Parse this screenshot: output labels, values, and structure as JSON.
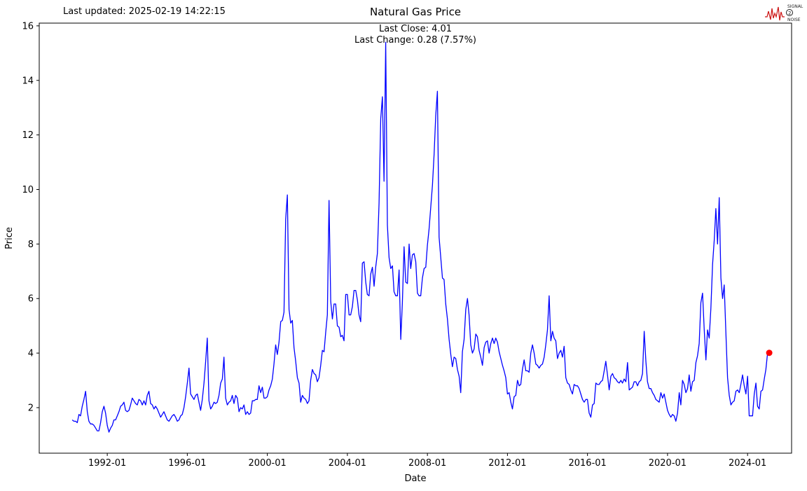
{
  "header": {
    "last_updated": "Last updated: 2025-02-19 14:22:15",
    "title": "Natural Gas Price",
    "subtitle_close": "Last Close: 4.01",
    "subtitle_change": "Last Change: 0.28 (7.57%)"
  },
  "logo": {
    "line1": "SIGNAL",
    "line2": "2",
    "line3": "NOISE",
    "wave_color": "#cc1111",
    "text_color": "#222222"
  },
  "chart_data": {
    "type": "line",
    "title": "Natural Gas Price",
    "xlabel": "Date",
    "ylabel": "Price",
    "line_color": "#0000ff",
    "marker_color": "#ff0000",
    "grid": false,
    "xlim": [
      1988.6,
      2026.2
    ],
    "ylim": [
      0.33,
      16.1
    ],
    "x_ticks": [
      1992,
      1996,
      2000,
      2004,
      2008,
      2012,
      2016,
      2020,
      2024
    ],
    "x_tick_labels": [
      "1992-01",
      "1996-01",
      "2000-01",
      "2004-01",
      "2008-01",
      "2012-01",
      "2016-01",
      "2020-01",
      "2024-01"
    ],
    "y_ticks": [
      2,
      4,
      6,
      8,
      10,
      12,
      14,
      16
    ],
    "y_tick_labels": [
      "2",
      "4",
      "6",
      "8",
      "10",
      "12",
      "14",
      "16"
    ],
    "last_close": 4.01,
    "last_change_abs": 0.28,
    "last_change_pct": 7.57,
    "end_marker": {
      "x": 2025.083,
      "y": 4.01
    },
    "series": [
      {
        "name": "Natural Gas Price",
        "freq": "monthly",
        "start_year": 1990,
        "start_month": 4,
        "values": [
          1.55,
          1.5,
          1.5,
          1.45,
          1.75,
          1.7,
          2.05,
          2.3,
          2.6,
          1.85,
          1.5,
          1.4,
          1.4,
          1.35,
          1.25,
          1.15,
          1.15,
          1.45,
          1.85,
          2.05,
          1.8,
          1.35,
          1.1,
          1.25,
          1.35,
          1.55,
          1.55,
          1.7,
          1.85,
          2.05,
          2.1,
          2.2,
          1.9,
          1.85,
          1.9,
          2.1,
          2.35,
          2.25,
          2.15,
          2.1,
          2.3,
          2.25,
          2.1,
          2.25,
          2.1,
          2.45,
          2.6,
          2.15,
          2.1,
          1.95,
          2.05,
          1.95,
          1.8,
          1.65,
          1.75,
          1.85,
          1.7,
          1.55,
          1.5,
          1.6,
          1.7,
          1.75,
          1.65,
          1.5,
          1.55,
          1.7,
          1.75,
          2.0,
          2.4,
          2.9,
          3.45,
          2.5,
          2.4,
          2.3,
          2.45,
          2.5,
          2.2,
          1.9,
          2.3,
          2.9,
          3.7,
          4.55,
          2.25,
          1.95,
          2.05,
          2.2,
          2.15,
          2.2,
          2.45,
          2.9,
          3.05,
          3.85,
          2.35,
          2.1,
          2.2,
          2.25,
          2.45,
          2.15,
          2.45,
          2.35,
          1.85,
          2.0,
          1.95,
          2.1,
          1.75,
          1.85,
          1.75,
          1.8,
          2.25,
          2.25,
          2.3,
          2.3,
          2.8,
          2.55,
          2.75,
          2.35,
          2.35,
          2.4,
          2.65,
          2.8,
          3.05,
          3.6,
          4.3,
          3.95,
          4.4,
          5.15,
          5.2,
          5.5,
          8.9,
          9.8,
          5.6,
          5.1,
          5.2,
          4.2,
          3.7,
          3.1,
          2.9,
          2.2,
          2.45,
          2.35,
          2.3,
          2.15,
          2.25,
          3.0,
          3.4,
          3.25,
          3.2,
          2.95,
          3.1,
          3.55,
          4.1,
          4.05,
          4.75,
          5.4,
          9.6,
          5.9,
          5.25,
          5.8,
          5.8,
          5.0,
          4.95,
          4.6,
          4.65,
          4.45,
          6.15,
          6.15,
          5.4,
          5.4,
          5.7,
          6.3,
          6.3,
          5.95,
          5.4,
          5.15,
          7.3,
          7.35,
          6.6,
          6.15,
          6.1,
          6.9,
          7.15,
          6.45,
          7.15,
          7.65,
          9.5,
          12.6,
          13.4,
          10.3,
          15.4,
          8.7,
          7.5,
          7.1,
          7.2,
          6.25,
          6.1,
          6.1,
          7.05,
          4.5,
          5.85,
          7.9,
          6.6,
          6.55,
          8.0,
          7.1,
          7.6,
          7.65,
          7.35,
          6.2,
          6.1,
          6.1,
          6.75,
          7.1,
          7.15,
          7.95,
          8.55,
          9.35,
          10.15,
          11.3,
          12.7,
          13.6,
          8.25,
          7.5,
          6.75,
          6.7,
          5.8,
          5.25,
          4.5,
          3.95,
          3.5,
          3.85,
          3.8,
          3.4,
          3.15,
          2.55,
          4.05,
          4.5,
          5.6,
          6.0,
          5.4,
          4.3,
          4.0,
          4.15,
          4.7,
          4.6,
          4.1,
          3.85,
          3.55,
          4.2,
          4.4,
          4.45,
          4.0,
          4.35,
          4.55,
          4.35,
          4.55,
          4.4,
          4.05,
          3.8,
          3.55,
          3.35,
          3.1,
          2.5,
          2.55,
          2.2,
          1.95,
          2.4,
          2.45,
          3.0,
          2.8,
          2.85,
          3.4,
          3.75,
          3.35,
          3.35,
          3.3,
          4.0,
          4.3,
          4.0,
          3.6,
          3.55,
          3.45,
          3.55,
          3.6,
          3.85,
          4.3,
          4.85,
          6.1,
          4.45,
          4.8,
          4.55,
          4.45,
          3.8,
          4.0,
          4.1,
          3.85,
          4.25,
          3.1,
          2.9,
          2.85,
          2.65,
          2.5,
          2.85,
          2.8,
          2.8,
          2.7,
          2.5,
          2.3,
          2.2,
          2.3,
          2.3,
          1.8,
          1.65,
          2.1,
          2.15,
          2.9,
          2.85,
          2.85,
          2.95,
          3.0,
          3.35,
          3.7,
          3.2,
          2.65,
          3.15,
          3.25,
          3.1,
          3.05,
          2.95,
          2.9,
          3.0,
          2.9,
          3.05,
          2.95,
          3.65,
          2.65,
          2.7,
          2.75,
          2.95,
          2.95,
          2.8,
          2.95,
          3.0,
          3.25,
          4.8,
          3.7,
          2.95,
          2.7,
          2.7,
          2.55,
          2.45,
          2.3,
          2.25,
          2.2,
          2.55,
          2.35,
          2.5,
          2.2,
          1.9,
          1.75,
          1.65,
          1.75,
          1.7,
          1.5,
          1.8,
          2.55,
          2.1,
          3.0,
          2.85,
          2.55,
          2.7,
          3.2,
          2.6,
          2.95,
          3.0,
          3.65,
          3.9,
          4.35,
          5.85,
          6.2,
          4.85,
          3.75,
          4.85,
          4.55,
          5.65,
          7.25,
          8.15,
          9.3,
          8.0,
          9.7,
          6.75,
          6.0,
          6.5,
          4.75,
          3.1,
          2.45,
          2.1,
          2.2,
          2.25,
          2.6,
          2.65,
          2.55,
          2.85,
          3.2,
          2.8,
          2.5,
          3.15,
          1.7,
          1.7,
          1.7,
          2.5,
          2.9,
          2.05,
          1.95,
          2.6,
          2.65,
          3.05,
          3.4,
          4.0,
          4.01
        ]
      }
    ]
  }
}
